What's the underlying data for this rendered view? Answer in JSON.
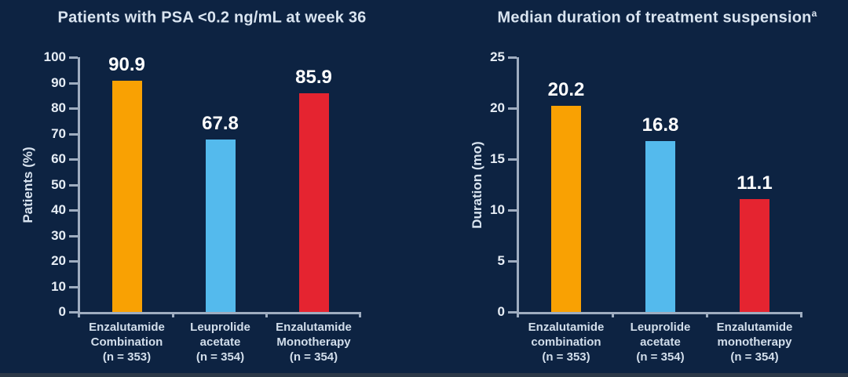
{
  "background_color": "#0d2342",
  "footer_strip_color": "#2c3847",
  "colors": {
    "orange": "#f9a103",
    "blue": "#54baed",
    "red": "#e52430",
    "axis": "#9fadc0",
    "title_text": "#d9e4f0",
    "value_text": "#ffffff",
    "tick_text": "#e6edf5",
    "category_text": "#d2deeb"
  },
  "chart_data": [
    {
      "type": "bar",
      "title": "Patients with PSA <0.2 ng/mL at week 36",
      "title_sup": "",
      "ylabel": "Patients (%)",
      "ylim": [
        0,
        100
      ],
      "ytick_step": 10,
      "grid": false,
      "legend": "none",
      "categories": [
        [
          "Enzalutamide",
          "Combination",
          "(n = 353)"
        ],
        [
          "Leuprolide",
          "acetate",
          "(n = 354)"
        ],
        [
          "Enzalutamide",
          "Monotherapy",
          "(n = 354)"
        ]
      ],
      "values": [
        90.9,
        67.8,
        85.9
      ],
      "value_labels": [
        "90.9",
        "67.8",
        "85.9"
      ],
      "bar_colors": [
        "orange",
        "blue",
        "red"
      ]
    },
    {
      "type": "bar",
      "title": "Median duration of treatment suspension",
      "title_sup": "a",
      "ylabel": "Duration (mo)",
      "ylim": [
        0,
        25
      ],
      "ytick_step": 5,
      "grid": false,
      "legend": "none",
      "categories": [
        [
          "Enzalutamide",
          "combination",
          "(n = 353)"
        ],
        [
          "Leuprolide",
          "acetate",
          "(n = 354)"
        ],
        [
          "Enzalutamide",
          "monotherapy",
          "(n = 354)"
        ]
      ],
      "values": [
        20.2,
        16.8,
        11.1
      ],
      "value_labels": [
        "20.2",
        "16.8",
        "11.1"
      ],
      "bar_colors": [
        "orange",
        "blue",
        "red"
      ]
    }
  ]
}
